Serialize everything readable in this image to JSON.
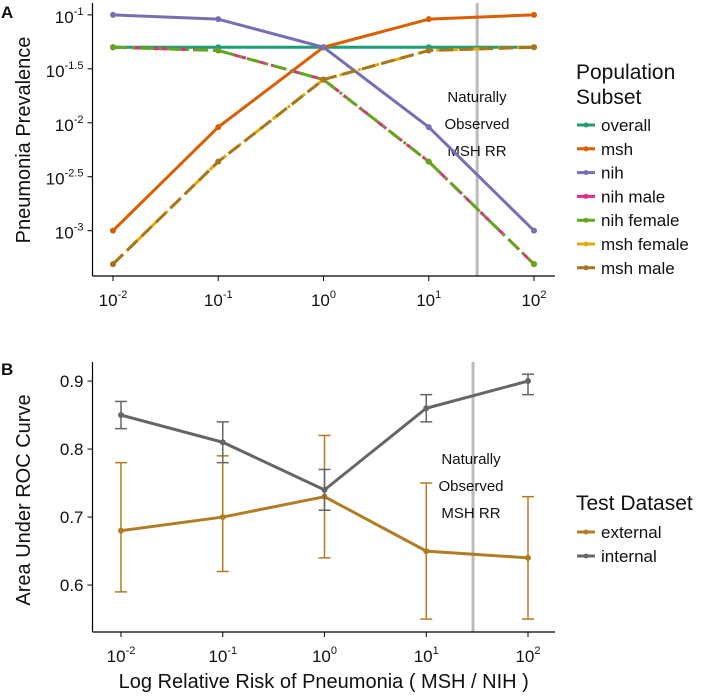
{
  "chart_data": [
    {
      "panel_label": "A",
      "type": "line",
      "title": "",
      "xlabel": "",
      "ylabel": "Pneumonia Prevalence",
      "x_scale": "log10",
      "y_scale": "log10",
      "x": [
        -2,
        -1,
        0,
        1,
        2
      ],
      "x_tick_labels": [
        {
          "base": "10",
          "exp": "-2"
        },
        {
          "base": "10",
          "exp": "-1"
        },
        {
          "base": "10",
          "exp": "0"
        },
        {
          "base": "10",
          "exp": "1"
        },
        {
          "base": "10",
          "exp": "2"
        }
      ],
      "y_ticks": [
        -1,
        -1.5,
        -2,
        -2.5,
        -3
      ],
      "y_tick_labels": [
        {
          "base": "10",
          "exp": "-1"
        },
        {
          "base": "10",
          "exp": "-1.5"
        },
        {
          "base": "10",
          "exp": "-2"
        },
        {
          "base": "10",
          "exp": "-2.5"
        },
        {
          "base": "10",
          "exp": "-3"
        }
      ],
      "xlim": [
        -2.2,
        2.2
      ],
      "ylim": [
        -3.42,
        -0.89
      ],
      "grid": false,
      "legend_title": [
        "Population",
        "Subset"
      ],
      "legend_position": "right",
      "reference_line": {
        "x_log10": 1.46,
        "label": [
          "Naturally",
          "Observed",
          "MSH RR"
        ],
        "color": "#bbbbbb"
      },
      "series": [
        {
          "name": "overall",
          "color": "#1b9e77",
          "dash": "",
          "values_log10": [
            -1.3,
            -1.3,
            -1.3,
            -1.3,
            -1.3
          ]
        },
        {
          "name": "msh",
          "color": "#d95f02",
          "dash": "",
          "values_log10": [
            -3.0,
            -2.04,
            -1.3,
            -1.04,
            -1.0
          ]
        },
        {
          "name": "nih",
          "color": "#7570b3",
          "dash": "",
          "values_log10": [
            -1.0,
            -1.04,
            -1.3,
            -2.04,
            -3.0
          ]
        },
        {
          "name": "nih male",
          "color": "#e7298a",
          "dash": "14 6",
          "values_log10": [
            -1.3,
            -1.33,
            -1.6,
            -2.36,
            -3.31
          ]
        },
        {
          "name": "nih female",
          "color": "#66a61e",
          "dash": "14 5 3 5",
          "values_log10": [
            -1.3,
            -1.33,
            -1.6,
            -2.36,
            -3.31
          ]
        },
        {
          "name": "msh female",
          "color": "#e6ab02",
          "dash": "14 5 3 5",
          "values_log10": [
            -3.31,
            -2.36,
            -1.6,
            -1.33,
            -1.3
          ]
        },
        {
          "name": "msh male",
          "color": "#a6761d",
          "dash": "14 6",
          "values_log10": [
            -3.31,
            -2.36,
            -1.6,
            -1.33,
            -1.3
          ]
        }
      ]
    },
    {
      "panel_label": "B",
      "type": "line",
      "title": "",
      "xlabel": "Log Relative Risk of Pneumonia ( MSH / NIH )",
      "ylabel": "Area Under ROC Curve",
      "x_scale": "log10",
      "x": [
        -2,
        -1,
        0,
        1,
        2
      ],
      "x_tick_labels": [
        {
          "base": "10",
          "exp": "-2"
        },
        {
          "base": "10",
          "exp": "-1"
        },
        {
          "base": "10",
          "exp": "0"
        },
        {
          "base": "10",
          "exp": "1"
        },
        {
          "base": "10",
          "exp": "2"
        }
      ],
      "y_ticks": [
        0.9,
        0.8,
        0.7,
        0.6
      ],
      "y_tick_labels": [
        "0.9",
        "0.8",
        "0.7",
        "0.6"
      ],
      "xlim": [
        -2.28,
        2.27
      ],
      "ylim": [
        0.531,
        0.928
      ],
      "grid": false,
      "legend_title": [
        "Test Dataset"
      ],
      "legend_position": "right",
      "reference_line": {
        "x_log10": 1.46,
        "label": [
          "Naturally",
          "Observed",
          "MSH RR"
        ],
        "color": "#bbbbbb"
      },
      "series": [
        {
          "name": "external",
          "color": "#b07d22",
          "values": [
            0.68,
            0.7,
            0.73,
            0.65,
            0.64
          ],
          "lower": [
            0.59,
            0.62,
            0.64,
            0.55,
            0.55
          ],
          "upper": [
            0.78,
            0.79,
            0.82,
            0.75,
            0.73
          ]
        },
        {
          "name": "internal",
          "color": "#666666",
          "values": [
            0.85,
            0.81,
            0.74,
            0.86,
            0.9
          ],
          "lower": [
            0.83,
            0.78,
            0.71,
            0.84,
            0.88
          ],
          "upper": [
            0.87,
            0.84,
            0.77,
            0.88,
            0.91
          ]
        }
      ]
    }
  ]
}
